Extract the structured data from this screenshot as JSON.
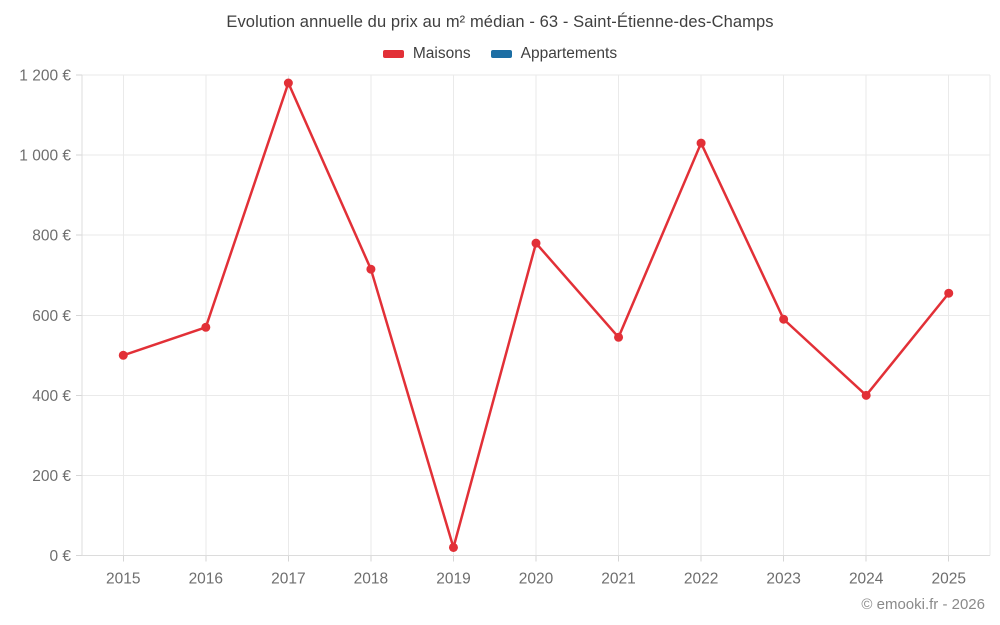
{
  "page": {
    "background": "#ffffff"
  },
  "header": {
    "title": "Evolution annuelle du prix au m² médian - 63 - Saint-Étienne-des-Champs"
  },
  "legend": {
    "items": [
      {
        "label": "Maisons",
        "color": "#e23037"
      },
      {
        "label": "Appartements",
        "color": "#1c6ea4"
      }
    ]
  },
  "footer": {
    "copyright": "© emooki.fr - 2026"
  },
  "chart_data": {
    "type": "line",
    "title": "Evolution annuelle du prix au m² médian - 63 - Saint-Étienne-des-Champs",
    "xlabel": "",
    "ylabel": "",
    "categories": [
      "2015",
      "2016",
      "2017",
      "2018",
      "2019",
      "2020",
      "2021",
      "2022",
      "2023",
      "2024",
      "2025"
    ],
    "series": [
      {
        "name": "Maisons",
        "color": "#e23037",
        "values": [
          500,
          570,
          1180,
          715,
          20,
          780,
          545,
          1030,
          590,
          400,
          655
        ]
      },
      {
        "name": "Appartements",
        "color": "#1c6ea4",
        "values": []
      }
    ],
    "ylim": [
      0,
      1200
    ],
    "y_ticks": [
      {
        "value": 0,
        "label": "0 €"
      },
      {
        "value": 200,
        "label": "200 €"
      },
      {
        "value": 400,
        "label": "400 €"
      },
      {
        "value": 600,
        "label": "600 €"
      },
      {
        "value": 800,
        "label": "800 €"
      },
      {
        "value": 1000,
        "label": "1 000 €"
      },
      {
        "value": 1200,
        "label": "1 200 €"
      }
    ],
    "grid": true,
    "legend_position": "top",
    "style": {
      "grid_color": "#eaeaea",
      "axis_color": "#dcdcdc",
      "tick_color": "#d6d6d6",
      "tick_text_color": "#6e6e6e",
      "line_width": 2.5,
      "point_radius": 4.5
    }
  }
}
